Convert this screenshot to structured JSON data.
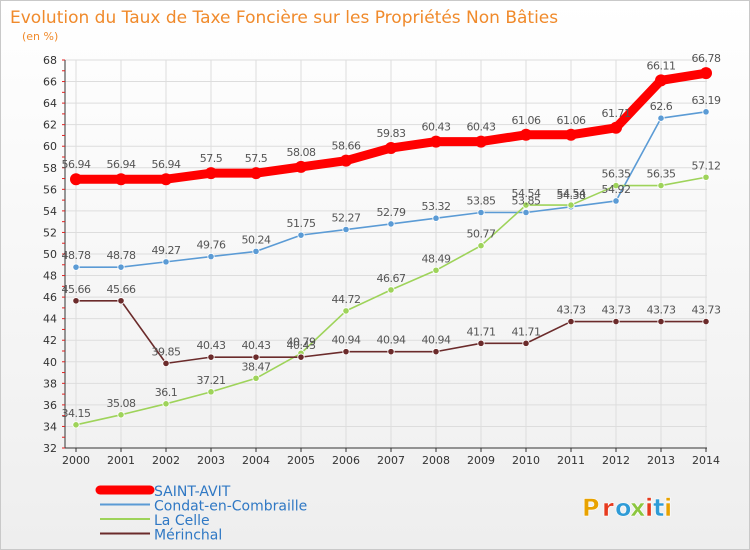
{
  "chart_data": {
    "type": "line",
    "title": "Evolution du Taux de Taxe Foncière sur les Propriétés Non Bâties",
    "ylabel": "(en %)",
    "xlabel": "",
    "categories": [
      "2000",
      "2001",
      "2002",
      "2003",
      "2004",
      "2005",
      "2006",
      "2007",
      "2008",
      "2009",
      "2010",
      "2011",
      "2012",
      "2013",
      "2014"
    ],
    "ylim": [
      32,
      68
    ],
    "yticks": [
      32,
      34,
      36,
      38,
      40,
      42,
      44,
      46,
      48,
      50,
      52,
      54,
      56,
      58,
      60,
      62,
      64,
      66,
      68
    ],
    "grid": true,
    "series": [
      {
        "name": "SAINT-AVIT",
        "color": "#ff0000",
        "values": [
          56.94,
          56.94,
          56.94,
          57.5,
          57.5,
          58.08,
          58.66,
          59.83,
          60.43,
          60.43,
          61.06,
          61.06,
          61.71,
          66.11,
          66.78
        ],
        "labels": [
          "56.94",
          "56.94",
          "56.94",
          "57.5",
          "57.5",
          "58.08",
          "58.66",
          "59.83",
          "60.43",
          "60.43",
          "61.06",
          "61.06",
          "61.71",
          "66.11",
          "66.78"
        ]
      },
      {
        "name": "Condat-en-Combraille",
        "color": "#5b9bd5",
        "values": [
          48.78,
          48.78,
          49.27,
          49.76,
          50.24,
          51.75,
          52.27,
          52.79,
          53.32,
          53.85,
          53.85,
          54.38,
          54.92,
          62.6,
          63.19
        ],
        "labels": [
          "48.78",
          "48.78",
          "49.27",
          "49.76",
          "50.24",
          "51.75",
          "52.27",
          "52.79",
          "53.32",
          "53.85",
          "53.85",
          "54.38",
          "54.92",
          "62.6",
          "63.19"
        ]
      },
      {
        "name": "La Celle",
        "color": "#9ed35a",
        "values": [
          34.15,
          35.08,
          36.1,
          37.21,
          38.47,
          40.79,
          44.72,
          46.67,
          48.49,
          50.77,
          54.54,
          54.54,
          56.35,
          56.35,
          57.12
        ],
        "labels": [
          "34.15",
          "35.08",
          "36.1",
          "37.21",
          "38.47",
          "40.79",
          "44.72",
          "46.67",
          "48.49",
          "50.77",
          "54.54",
          "54.54",
          "56.35",
          "56.35",
          "57.12"
        ]
      },
      {
        "name": "Mérinchal",
        "color": "#6b2b2b",
        "values": [
          45.66,
          45.66,
          39.85,
          40.43,
          40.43,
          40.43,
          40.94,
          40.94,
          40.94,
          41.71,
          41.71,
          43.73,
          43.73,
          43.73,
          43.73
        ],
        "labels": [
          "45.66",
          "45.66",
          "39.85",
          "40.43",
          "40.43",
          "40.43",
          "40.94",
          "40.94",
          "40.94",
          "41.71",
          "41.71",
          "43.73",
          "43.73",
          "43.73",
          "43.73"
        ]
      }
    ],
    "legend_position": "bottom-left"
  },
  "watermark": {
    "text": "Proxiti",
    "colors": [
      "#e8a200",
      "#e63a1e",
      "#2f9bd6",
      "#8cc63f",
      "#e63a1e",
      "#2f9bd6",
      "#e8a200"
    ]
  }
}
